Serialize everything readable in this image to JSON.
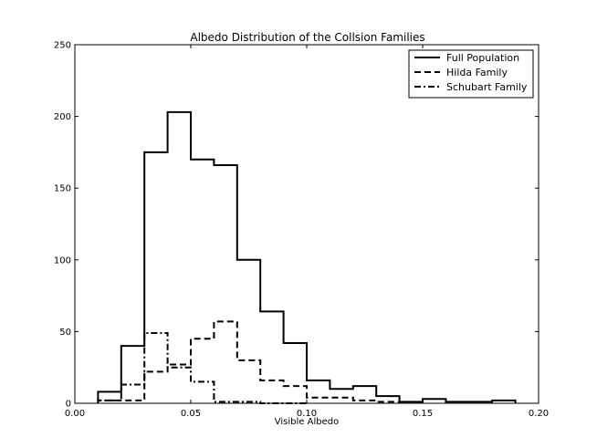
{
  "chart_data": {
    "type": "step-histogram",
    "title": "Albedo Distribution of the Collsion Families",
    "xlabel": "Visible Albedo",
    "ylabel": "",
    "xlim": [
      0.0,
      0.2
    ],
    "ylim": [
      0,
      250
    ],
    "xticks": [
      0.0,
      0.05,
      0.1,
      0.15,
      0.2
    ],
    "xtick_labels": [
      "0.00",
      "0.05",
      "0.10",
      "0.15",
      "0.20"
    ],
    "yticks": [
      0,
      50,
      100,
      150,
      200,
      250
    ],
    "ytick_labels": [
      "0",
      "50",
      "100",
      "150",
      "200",
      "250"
    ],
    "grid": false,
    "legend_position": "top-right",
    "series": [
      {
        "name": "Full Population",
        "line_style": "solid",
        "bin_edges": [
          0.01,
          0.02,
          0.03,
          0.04,
          0.05,
          0.06,
          0.07,
          0.08,
          0.09,
          0.1,
          0.11,
          0.12,
          0.13,
          0.14,
          0.15,
          0.16,
          0.17,
          0.18,
          0.19
        ],
        "counts": [
          8,
          40,
          175,
          203,
          170,
          166,
          100,
          64,
          42,
          16,
          10,
          12,
          5,
          1,
          3,
          1,
          1,
          2
        ]
      },
      {
        "name": "Hilda Family",
        "line_style": "dashed",
        "bin_edges": [
          0.01,
          0.02,
          0.03,
          0.04,
          0.05,
          0.06,
          0.07,
          0.08,
          0.09,
          0.1,
          0.11,
          0.12,
          0.13,
          0.14
        ],
        "counts": [
          2,
          2,
          22,
          27,
          45,
          57,
          30,
          16,
          12,
          4,
          4,
          2,
          1
        ]
      },
      {
        "name": "Schubart Family",
        "line_style": "dashdot",
        "bin_edges": [
          0.01,
          0.02,
          0.03,
          0.04,
          0.05,
          0.06,
          0.07,
          0.08,
          0.09,
          0.1
        ],
        "counts": [
          2,
          13,
          49,
          25,
          15,
          1,
          1,
          0,
          0
        ]
      }
    ]
  }
}
